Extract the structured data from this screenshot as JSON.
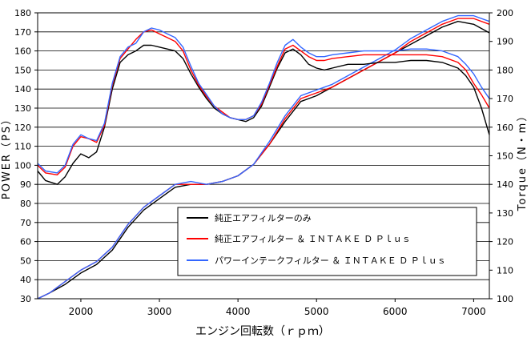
{
  "chart_data": {
    "type": "line",
    "xlabel": "エンジン回転数（ｒｐｍ）",
    "ylabel": "POWER（PS）",
    "y2label": "Torque（N・m）",
    "xlim": [
      1450,
      7200
    ],
    "ylim": [
      30,
      180
    ],
    "y2lim": [
      100,
      200
    ],
    "xticks": [
      2000,
      3000,
      4000,
      5000,
      6000,
      7000
    ],
    "yticks": [
      30,
      40,
      50,
      60,
      70,
      80,
      90,
      100,
      110,
      120,
      130,
      140,
      150,
      160,
      170,
      180
    ],
    "y2ticks": [
      100,
      110,
      120,
      130,
      140,
      150,
      160,
      170,
      180,
      190,
      200
    ],
    "grid": "horizontal",
    "legend_position": "lower-right",
    "series": [
      {
        "name": "純正エアフィルターのみ",
        "color": "#000000",
        "axis": "left",
        "kind": "power",
        "x": [
          1450,
          1550,
          1700,
          1800,
          1900,
          2000,
          2100,
          2200,
          2300,
          2400,
          2500,
          2600,
          2700,
          2800,
          2900,
          3000,
          3100,
          3200,
          3300,
          3400,
          3500,
          3600,
          3700,
          3800,
          3900,
          4000,
          4100,
          4200,
          4300,
          4400,
          4500,
          4600,
          4700,
          4800,
          4900,
          5000,
          5100,
          5200,
          5400,
          5600,
          5800,
          6000,
          6200,
          6400,
          6600,
          6800,
          6900,
          7000,
          7100,
          7200
        ],
        "values": [
          97,
          92,
          90,
          94,
          101,
          106,
          104,
          107,
          120,
          140,
          154,
          158,
          160,
          163,
          163,
          162,
          161,
          160,
          156,
          148,
          141,
          135,
          130,
          127,
          125,
          124,
          123,
          125,
          131,
          141,
          151,
          159,
          161,
          158,
          153,
          151,
          150,
          151,
          153,
          153,
          154,
          154,
          155,
          155,
          154,
          151,
          147,
          141,
          130,
          116
        ]
      },
      {
        "name": "純正エアフィルター ＆ ＩＮＴＡＫＥ Ｄ Ｐｌｕｓ",
        "color": "#ff0000",
        "axis": "left",
        "kind": "power",
        "x": [
          1450,
          1550,
          1700,
          1800,
          1900,
          2000,
          2100,
          2200,
          2300,
          2400,
          2500,
          2600,
          2700,
          2800,
          2900,
          3000,
          3100,
          3200,
          3300,
          3400,
          3500,
          3600,
          3700,
          3800,
          3900,
          4000,
          4100,
          4200,
          4300,
          4400,
          4500,
          4600,
          4700,
          4800,
          4900,
          5000,
          5100,
          5200,
          5400,
          5600,
          5800,
          6000,
          6200,
          6400,
          6600,
          6800,
          6900,
          7000,
          7100,
          7200
        ],
        "values": [
          100,
          96,
          95,
          99,
          110,
          115,
          114,
          112,
          121,
          142,
          156,
          161,
          166,
          170,
          171,
          169,
          167,
          165,
          160,
          150,
          142,
          136,
          131,
          128,
          125,
          124,
          124,
          126,
          132,
          142,
          152,
          161,
          163,
          160,
          157,
          155,
          155,
          156,
          157,
          158,
          158,
          158,
          158,
          158,
          157,
          154,
          150,
          143,
          137,
          130
        ]
      },
      {
        "name": "パワーインテークフィルター ＆ ＩＮＴＡＫＥ Ｄ Ｐｌｕｓ",
        "color": "#3366ff",
        "axis": "left",
        "kind": "power",
        "x": [
          1450,
          1550,
          1700,
          1800,
          1900,
          2000,
          2100,
          2200,
          2300,
          2400,
          2500,
          2600,
          2700,
          2800,
          2900,
          3000,
          3100,
          3200,
          3300,
          3400,
          3500,
          3600,
          3700,
          3800,
          3900,
          4000,
          4100,
          4200,
          4300,
          4400,
          4500,
          4600,
          4700,
          4800,
          4900,
          5000,
          5100,
          5200,
          5400,
          5600,
          5800,
          6000,
          6200,
          6400,
          6600,
          6800,
          6900,
          7000,
          7100,
          7200
        ],
        "values": [
          101,
          97,
          96,
          100,
          111,
          116,
          114,
          113,
          122,
          143,
          157,
          162,
          164,
          170,
          172,
          171,
          169,
          167,
          162,
          152,
          143,
          137,
          131,
          127,
          125,
          124,
          124,
          126,
          133,
          143,
          154,
          163,
          166,
          162,
          159,
          157,
          157,
          158,
          159,
          160,
          160,
          160,
          161,
          161,
          160,
          157,
          153,
          148,
          141,
          135
        ]
      },
      {
        "name": "純正エアフィルターのみ",
        "color": "#000000",
        "axis": "right",
        "kind": "torque",
        "x": [
          1450,
          1600,
          1800,
          2000,
          2200,
          2400,
          2600,
          2800,
          3000,
          3200,
          3400,
          3600,
          3800,
          4000,
          4200,
          4400,
          4600,
          4800,
          5000,
          5200,
          5400,
          5600,
          5800,
          6000,
          6200,
          6400,
          6600,
          6800,
          7000,
          7200
        ],
        "values": [
          100,
          102,
          105,
          109,
          112,
          117,
          125,
          131,
          135,
          139,
          140,
          140,
          141,
          143,
          147,
          154,
          162,
          169,
          171,
          174,
          177,
          180,
          183,
          186,
          189,
          192,
          195,
          197,
          196,
          193
        ]
      },
      {
        "name": "純正エアフィルター ＆ ＩＮＴＡＫＥ Ｄ Ｐｌｕｓ",
        "color": "#ff0000",
        "axis": "right",
        "kind": "torque",
        "x": [
          1450,
          1600,
          1800,
          2000,
          2200,
          2400,
          2600,
          2800,
          3000,
          3200,
          3400,
          3600,
          3800,
          4000,
          4200,
          4400,
          4600,
          4800,
          5000,
          5200,
          5400,
          5600,
          5800,
          6000,
          6200,
          6400,
          6600,
          6800,
          7000,
          7200
        ],
        "values": [
          100,
          102,
          106,
          110,
          113,
          118,
          126,
          132,
          136,
          140,
          140,
          140,
          141,
          143,
          147,
          154,
          163,
          170,
          172,
          174,
          177,
          180,
          183,
          186,
          190,
          193,
          196,
          198,
          198,
          196
        ]
      },
      {
        "name": "パワーインテークフィルター ＆ ＩＮＴＡＫＥ Ｄ Ｐｌｕｓ",
        "color": "#3366ff",
        "axis": "right",
        "kind": "torque",
        "x": [
          1450,
          1600,
          1800,
          2000,
          2200,
          2400,
          2600,
          2800,
          3000,
          3200,
          3400,
          3600,
          3800,
          4000,
          4200,
          4400,
          4600,
          4800,
          5000,
          5200,
          5400,
          5600,
          5800,
          6000,
          6200,
          6400,
          6600,
          6800,
          7000,
          7200
        ],
        "values": [
          100,
          102,
          106,
          110,
          113,
          118,
          126,
          132,
          136,
          140,
          141,
          140,
          141,
          143,
          147,
          155,
          164,
          171,
          173,
          175,
          178,
          181,
          184,
          187,
          191,
          194,
          197,
          199,
          199,
          197
        ]
      }
    ]
  }
}
